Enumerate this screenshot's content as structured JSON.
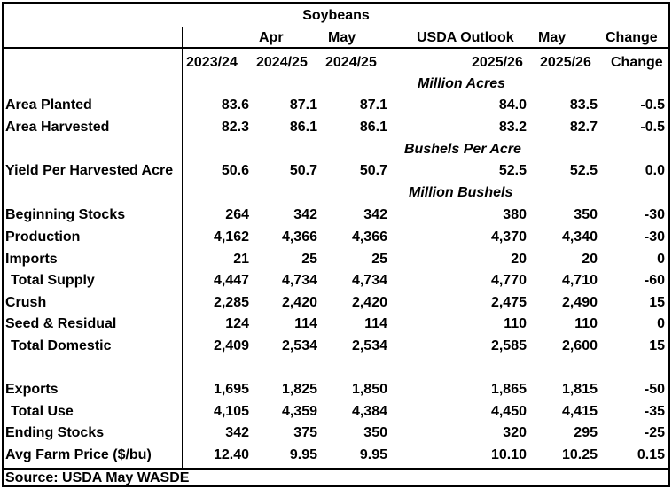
{
  "title": "Soybeans",
  "header_top": {
    "apr": "Apr",
    "may": "May",
    "outlook": "USDA Outlook",
    "may2": "May",
    "change": "Change"
  },
  "header_years": [
    "2023/24",
    "2024/25",
    "2024/25",
    "2025/26",
    "2025/26",
    "Change"
  ],
  "units": {
    "acres": "Million Acres",
    "yield": "Bushels Per Acre",
    "bushels": "Million Bushels"
  },
  "rows": [
    {
      "label": "Area Planted",
      "values": [
        "83.6",
        "87.1",
        "87.1",
        "84.0",
        "83.5",
        "-0.5"
      ]
    },
    {
      "label": "Area Harvested",
      "values": [
        "82.3",
        "86.1",
        "86.1",
        "83.2",
        "82.7",
        "-0.5"
      ]
    },
    {
      "label": "Yield Per Harvested Acre",
      "values": [
        "50.6",
        "50.7",
        "50.7",
        "52.5",
        "52.5",
        "0.0"
      ]
    },
    {
      "label": "Beginning Stocks",
      "values": [
        "264",
        "342",
        "342",
        "380",
        "350",
        "-30"
      ]
    },
    {
      "label": "Production",
      "values": [
        "4,162",
        "4,366",
        "4,366",
        "4,370",
        "4,340",
        "-30"
      ]
    },
    {
      "label": "Imports",
      "values": [
        "21",
        "25",
        "25",
        "20",
        "20",
        "0"
      ]
    },
    {
      "label": "Total Supply",
      "values": [
        "4,447",
        "4,734",
        "4,734",
        "4,770",
        "4,710",
        "-60"
      ]
    },
    {
      "label": "Crush",
      "values": [
        "2,285",
        "2,420",
        "2,420",
        "2,475",
        "2,490",
        "15"
      ]
    },
    {
      "label": "Seed & Residual",
      "values": [
        "124",
        "114",
        "114",
        "110",
        "110",
        "0"
      ]
    },
    {
      "label": "Total Domestic",
      "values": [
        "2,409",
        "2,534",
        "2,534",
        "2,585",
        "2,600",
        "15"
      ]
    },
    {
      "label": "Exports",
      "values": [
        "1,695",
        "1,825",
        "1,850",
        "1,865",
        "1,815",
        "-50"
      ]
    },
    {
      "label": "Total Use",
      "values": [
        "4,105",
        "4,359",
        "4,384",
        "4,450",
        "4,415",
        "-35"
      ]
    },
    {
      "label": "Ending Stocks",
      "values": [
        "342",
        "375",
        "350",
        "320",
        "295",
        "-25"
      ]
    },
    {
      "label": "Avg Farm Price ($/bu)",
      "values": [
        "12.40",
        "9.95",
        "9.95",
        "10.10",
        "10.25",
        "0.15"
      ]
    }
  ],
  "source": "Source: USDA May WASDE"
}
